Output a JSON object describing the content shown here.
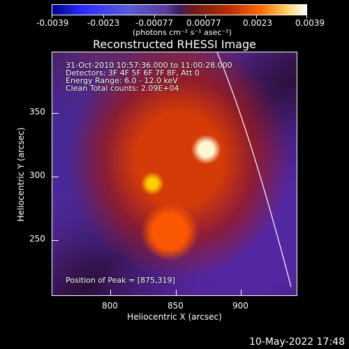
{
  "colorbar": {
    "tick_labels": [
      "-0.0039",
      "-0.0023",
      "-0.00077",
      "0.00077",
      "0.0023",
      "0.0039"
    ],
    "units_text": "(photons cm⁻² s⁻¹ asec⁻²)"
  },
  "title": "Reconstructed RHESSI Image",
  "info": {
    "time_range": "31-Oct-2010 10:57:36.000 to 11:00:28.000",
    "detectors": "Detectors: 3F 4F 5F 6F 7F 8F, Att 0",
    "energy_range": "Energy Range: 6.0 - 12.0 keV",
    "clean_counts": "Clean    Total counts: 2.09E+04",
    "peak": "Position of Peak = [875,319]"
  },
  "axes": {
    "xlabel": "Heliocentric X (arcsec)",
    "ylabel": "Heliocentric Y (arcsec)",
    "xticks": [
      "800",
      "850",
      "900"
    ],
    "yticks": [
      "250",
      "300",
      "350"
    ]
  },
  "footer": {
    "timestamp": "10-May-2022 17:48"
  }
}
